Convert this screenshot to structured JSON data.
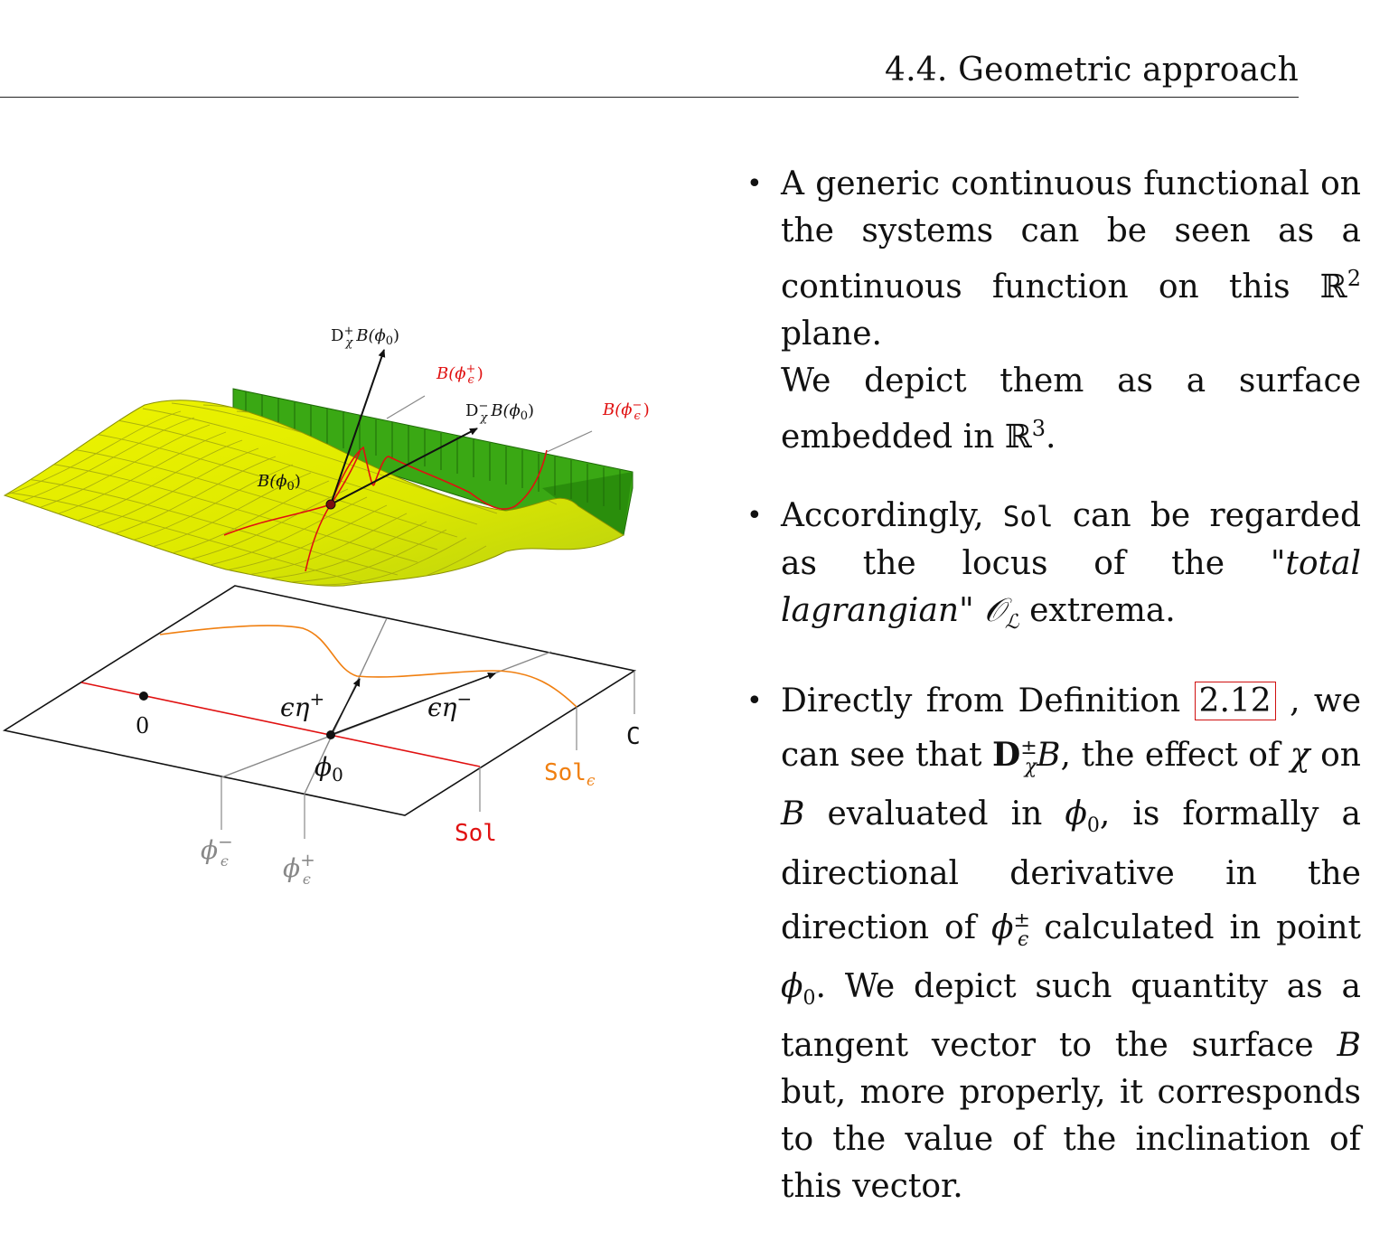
{
  "header": {
    "title": "4.4.  Geometric approach"
  },
  "figure": {
    "top_labels": {
      "dplus": "D",
      "dplus_sup": "+",
      "dplus_sub": "χ",
      "dplus_rest": "B(ϕ",
      "dplus_zero": "0",
      "dplus_close": ")",
      "dminus": "D",
      "dminus_sup": "−",
      "dminus_sub": "χ",
      "dminus_rest": "B(ϕ",
      "dminus_zero": "0",
      "dminus_close": ")",
      "b_phi0": "B(ϕ",
      "b_phi0_zero": "0",
      "b_phi0_close": ")",
      "b_plus": "B(ϕ",
      "b_plus_sup": "+",
      "b_plus_sub": "ϵ",
      "b_plus_close": ")",
      "b_minus": "B(ϕ",
      "b_minus_sup": "−",
      "b_minus_sub": "ϵ",
      "b_minus_close": ")"
    },
    "plane_labels": {
      "zero": "0",
      "c": "C",
      "eps_eta_plus": "ϵη",
      "eps_eta_plus_sup": "+",
      "eps_eta_minus": "ϵη",
      "eps_eta_minus_sup": "−",
      "phi0": "ϕ",
      "phi0_sub": "0",
      "sol_eps": "Sol",
      "sol_eps_sub": "ϵ",
      "sol": "Sol",
      "phi_minus": "ϕ",
      "phi_minus_sup": "−",
      "phi_minus_sub": "ϵ",
      "phi_plus": "ϕ",
      "phi_plus_sup": "+",
      "phi_plus_sub": "ϵ"
    },
    "colors": {
      "surface": "#e8f000",
      "surface_grid": "#9aa000",
      "green_wall": "#3aa814",
      "red": "#e01010",
      "orange": "#f07f10",
      "gray": "#888888"
    }
  },
  "bullets": {
    "b1": {
      "text_a": "A generic continuous functional on the systems can be seen as a continuous function on this ",
      "r2": "ℝ",
      "r2_sup": "2",
      "text_b": " plane.",
      "text_c": "We depict them as a surface embedded in ",
      "r3": "ℝ",
      "r3_sup": "3",
      "text_d": "."
    },
    "b2": {
      "text_a": "Accordingly, ",
      "sol": "Sol",
      "text_b": " can be regarded as the locus of the ",
      "quote": "\"total lagrangian\"",
      "text_c": " ",
      "o_sym": "𝒪",
      "o_sub": "ℒ",
      "text_d": " extrema."
    },
    "b3": {
      "text_a": "Directly from Definition ",
      "ref": "2.12",
      "text_b": " , we can see that ",
      "d_sym": "D",
      "d_sup": "±",
      "d_sub": "χ",
      "b_sym": "B",
      "text_c": ", the effect of ",
      "chi": "χ",
      "text_d": " on ",
      "b2": "B",
      "text_e": " evaluated in ",
      "phi0": "ϕ",
      "phi0_sub": "0",
      "text_f": ", is formally a directional derivative in the direction of ",
      "phi_eps": "ϕ",
      "phi_eps_sup": "±",
      "phi_eps_sub": "ϵ",
      "text_g": " calculated in point ",
      "phi0b": "ϕ",
      "phi0b_sub": "0",
      "text_h": ". We depict such quantity as a tangent vector to the surface ",
      "b3": "B",
      "text_i": " but, more properly, it corresponds to the value of the inclination of this vector."
    }
  }
}
